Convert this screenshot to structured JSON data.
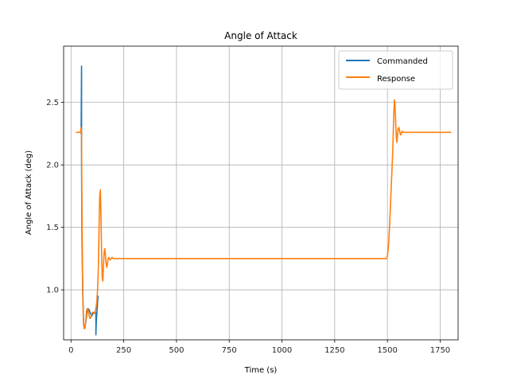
{
  "chart_data": {
    "type": "line",
    "title": "Angle of Attack",
    "xlabel": "Time (s)",
    "ylabel": "Angle of Attack (deg)",
    "xlim": [
      -35,
      1835
    ],
    "ylim": [
      0.6,
      2.95
    ],
    "xticks": [
      0,
      250,
      500,
      750,
      1000,
      1250,
      1500,
      1750
    ],
    "xtick_labels": [
      "0",
      "250",
      "500",
      "750",
      "1000",
      "1250",
      "1500",
      "1750"
    ],
    "yticks": [
      1.0,
      1.5,
      2.0,
      2.5
    ],
    "ytick_labels": [
      "1.0",
      "1.5",
      "2.0",
      "2.5"
    ],
    "grid": true,
    "legend_position": "upper right",
    "series": [
      {
        "name": "Commanded",
        "color": "#1f77b4",
        "x": [
          48,
          50,
          50,
          52,
          56,
          60,
          64,
          70,
          76,
          80,
          86,
          92,
          98,
          104,
          110,
          114,
          116,
          118,
          118,
          120,
          124,
          128
        ],
        "y": [
          2.25,
          2.79,
          2.0,
          1.4,
          0.95,
          0.72,
          0.69,
          0.74,
          0.82,
          0.85,
          0.84,
          0.81,
          0.79,
          0.81,
          0.82,
          0.82,
          0.82,
          0.81,
          0.64,
          0.75,
          0.85,
          0.95
        ]
      },
      {
        "name": "Response",
        "color": "#ff7f0e",
        "x": [
          25,
          40,
          45,
          48,
          50,
          52,
          55,
          58,
          62,
          66,
          70,
          74,
          78,
          82,
          86,
          90,
          94,
          98,
          102,
          106,
          110,
          114,
          118,
          122,
          126,
          130,
          133,
          136,
          139,
          142,
          145,
          148,
          151,
          154,
          157,
          160,
          163,
          166,
          169,
          172,
          175,
          178,
          182,
          186,
          190,
          195,
          200,
          210,
          230,
          300,
          500,
          1000,
          1495,
          1500,
          1505,
          1510,
          1515,
          1520,
          1525,
          1530,
          1533,
          1536,
          1539,
          1542,
          1545,
          1548,
          1551,
          1554,
          1557,
          1560,
          1563,
          1566,
          1570,
          1575,
          1580,
          1590,
          1600,
          1650,
          1700,
          1800
        ],
        "y": [
          2.26,
          2.26,
          2.26,
          2.3,
          2.25,
          1.6,
          1.1,
          0.8,
          0.69,
          0.69,
          0.75,
          0.84,
          0.85,
          0.83,
          0.79,
          0.77,
          0.78,
          0.81,
          0.82,
          0.82,
          0.81,
          0.82,
          0.85,
          0.9,
          1.0,
          1.2,
          1.5,
          1.75,
          1.8,
          1.6,
          1.3,
          1.1,
          1.07,
          1.2,
          1.3,
          1.33,
          1.28,
          1.22,
          1.18,
          1.2,
          1.24,
          1.26,
          1.25,
          1.24,
          1.25,
          1.26,
          1.25,
          1.25,
          1.25,
          1.25,
          1.25,
          1.25,
          1.25,
          1.27,
          1.35,
          1.5,
          1.7,
          1.9,
          2.1,
          2.4,
          2.52,
          2.48,
          2.35,
          2.22,
          2.18,
          2.24,
          2.29,
          2.3,
          2.28,
          2.25,
          2.24,
          2.25,
          2.27,
          2.26,
          2.26,
          2.26,
          2.26,
          2.26,
          2.26,
          2.26
        ]
      }
    ]
  }
}
